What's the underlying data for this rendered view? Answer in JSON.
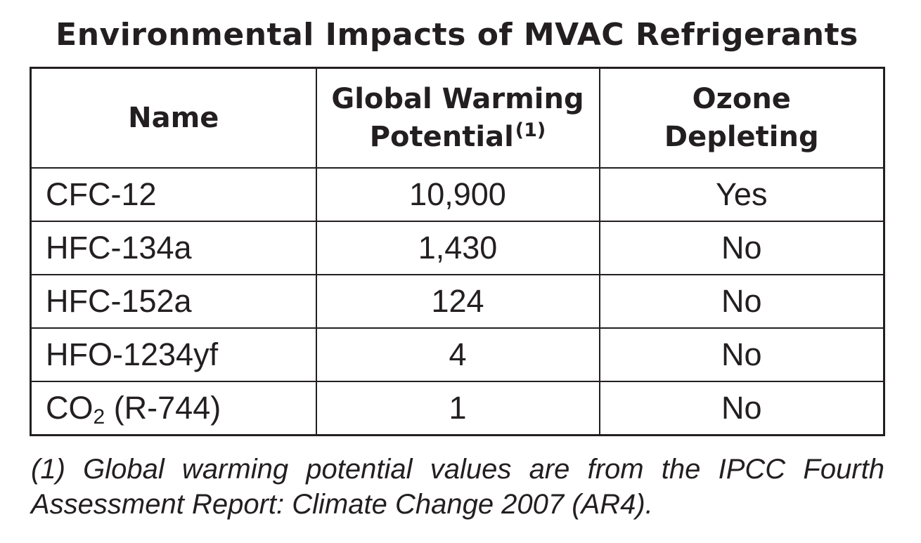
{
  "title": "Environmental Impacts of MVAC Refrigerants",
  "table": {
    "headers": {
      "name": "Name",
      "gwp_line1": "Global Warming",
      "gwp_line2": "Potential",
      "gwp_note": "(1)",
      "ozone_line1": "Ozone",
      "ozone_line2": "Depleting"
    },
    "rows": [
      {
        "name": "CFC-12",
        "gwp": "10,900",
        "ozone": "Yes"
      },
      {
        "name": "HFC-134a",
        "gwp": "1,430",
        "ozone": "No"
      },
      {
        "name": "HFC-152a",
        "gwp": "124",
        "ozone": "No"
      },
      {
        "name": "HFO-1234yf",
        "gwp": "4",
        "ozone": "No"
      },
      {
        "name_prefix": "CO",
        "name_sub": "2",
        "name_suffix": " (R-744)",
        "gwp": "1",
        "ozone": "No"
      }
    ]
  },
  "footnote": "(1) Global warming potential values are from the IPCC Fourth Assessment Report: Climate Change 2007 (AR4)."
}
